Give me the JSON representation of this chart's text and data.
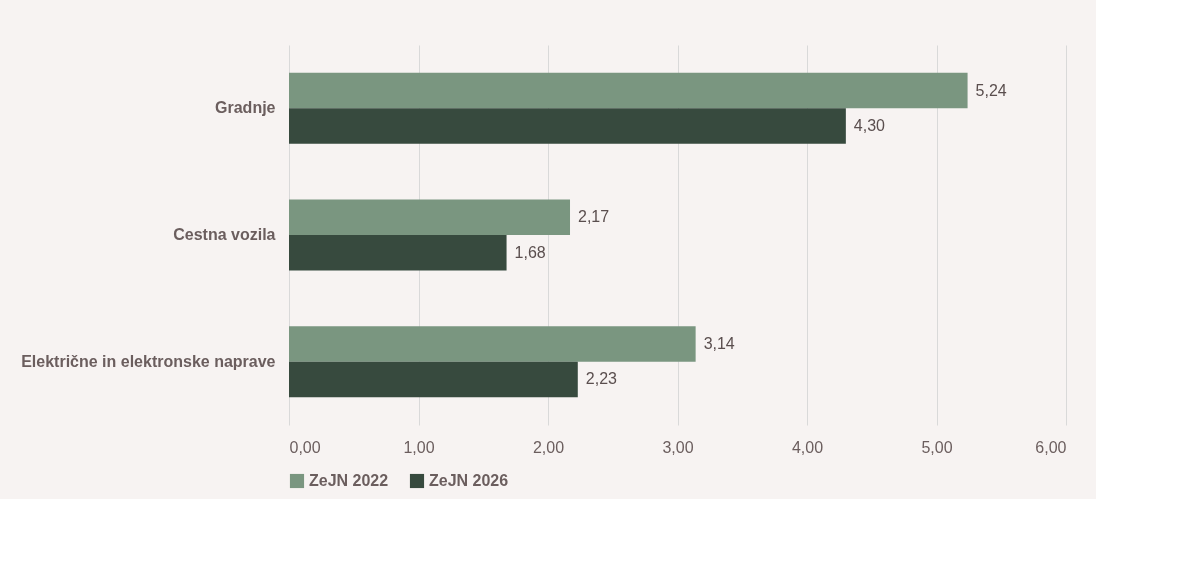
{
  "chart_data": {
    "type": "bar",
    "orientation": "horizontal",
    "categories": [
      "Gradnje",
      "Cestna vozila",
      "Električne in elektronske naprave"
    ],
    "series": [
      {
        "name": "ZeJN 2022",
        "color": "#7a9680",
        "values": [
          5.24,
          2.17,
          3.14
        ],
        "value_labels": [
          "5,24",
          "2,17",
          "3,14"
        ]
      },
      {
        "name": "ZeJN 2026",
        "color": "#374a3e",
        "values": [
          4.3,
          1.68,
          2.23
        ],
        "value_labels": [
          "4,30",
          "1,68",
          "2,23"
        ]
      }
    ],
    "xlim": [
      0,
      6
    ],
    "xticks": [
      {
        "value": 0,
        "label": "0,00"
      },
      {
        "value": 1,
        "label": "1,00"
      },
      {
        "value": 2,
        "label": "2,00"
      },
      {
        "value": 3,
        "label": "3,00"
      },
      {
        "value": 4,
        "label": "4,00"
      },
      {
        "value": 5,
        "label": "5,00"
      },
      {
        "value": 6,
        "label": "6,00"
      }
    ],
    "grid": "x",
    "legend": "bottom"
  }
}
